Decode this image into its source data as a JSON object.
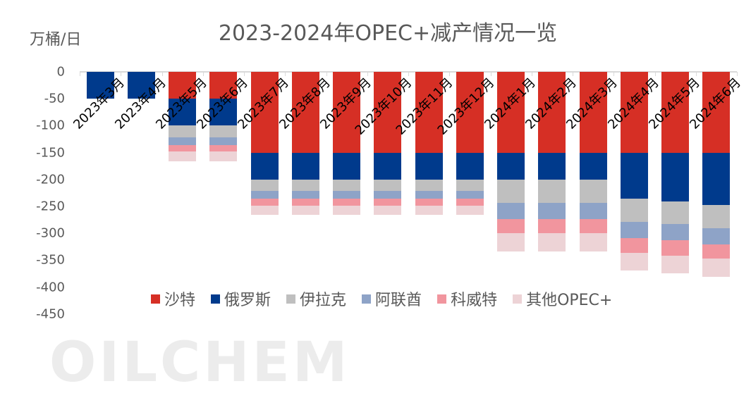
{
  "title": "2023-2024年OPEC+减产情况一览",
  "unit_label": "万桶/日",
  "watermark": "OILCHEM",
  "colors": {
    "沙特": "#D62F25",
    "俄罗斯": "#003A8C",
    "伊拉克": "#BFBFBF",
    "阿联酋": "#8EA3C7",
    "科威特": "#F1959E",
    "其他OPEC+": "#EDD3D6"
  },
  "legend": [
    "沙特",
    "俄罗斯",
    "伊拉克",
    "阿联酋",
    "科威特",
    "其他OPEC+"
  ],
  "y_ticks": [
    "0",
    "-50",
    "-100",
    "-150",
    "-200",
    "-250",
    "-300",
    "-350",
    "-400",
    "-450"
  ],
  "chart_data": {
    "type": "bar",
    "stacked": true,
    "title": "2023-2024年OPEC+减产情况一览",
    "xlabel": "",
    "ylabel": "万桶/日",
    "ylim": [
      -450,
      0
    ],
    "legend_position": "bottom",
    "grid": false,
    "categories": [
      "2023年3月",
      "2023年4月",
      "2023年5月",
      "2023年6月",
      "2023年7月",
      "2023年8月",
      "2023年9月",
      "2023年10月",
      "2023年11月",
      "2023年12月",
      "2024年1月",
      "2024年2月",
      "2024年3月",
      "2024年4月",
      "2024年5月",
      "2024年6月"
    ],
    "series": [
      {
        "name": "沙特",
        "values": [
          0,
          0,
          -50,
          -50,
          -150,
          -150,
          -150,
          -150,
          -150,
          -150,
          -150,
          -150,
          -150,
          -150,
          -150,
          -150
        ]
      },
      {
        "name": "俄罗斯",
        "values": [
          -50,
          -50,
          -50,
          -50,
          -50,
          -50,
          -50,
          -50,
          -50,
          -50,
          -50,
          -50,
          -50,
          -86,
          -91,
          -97
        ]
      },
      {
        "name": "伊拉克",
        "values": [
          0,
          0,
          -21.1,
          -21.1,
          -21.1,
          -21.1,
          -21.1,
          -21.1,
          -21.1,
          -21.1,
          -43.1,
          -43.1,
          -43.1,
          -43,
          -42,
          -43
        ]
      },
      {
        "name": "阿联酋",
        "values": [
          0,
          0,
          -14.4,
          -14.4,
          -14.4,
          -14.4,
          -14.4,
          -14.4,
          -14.4,
          -14.4,
          -30.7,
          -30.7,
          -30.7,
          -30,
          -30,
          -31
        ]
      },
      {
        "name": "科威特",
        "values": [
          0,
          0,
          -12.8,
          -12.8,
          -12.8,
          -12.8,
          -12.8,
          -12.8,
          -12.8,
          -12.8,
          -26.3,
          -26.3,
          -26.3,
          -27,
          -28,
          -26
        ]
      },
      {
        "name": "其他OPEC+",
        "values": [
          0,
          0,
          -17.4,
          -17.4,
          -17.4,
          -17.4,
          -17.4,
          -17.4,
          -17.4,
          -17.4,
          -34,
          -34,
          -34,
          -33,
          -33,
          -34
        ]
      }
    ]
  }
}
